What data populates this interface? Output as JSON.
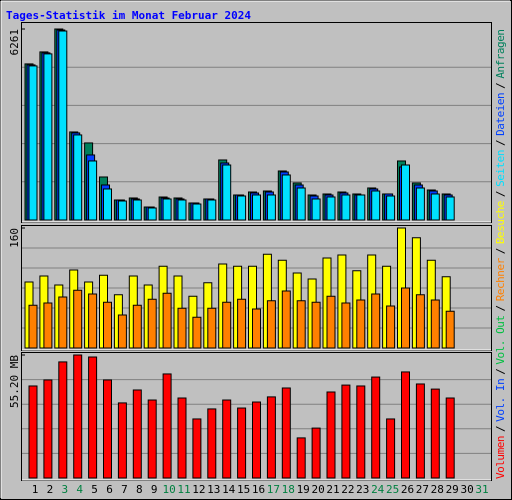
{
  "chart_data": {
    "type": "bar",
    "title": "Tages-Statistik im Monat Februar 2024",
    "categories": [
      "1",
      "2",
      "3",
      "4",
      "5",
      "6",
      "7",
      "8",
      "9",
      "10",
      "11",
      "12",
      "13",
      "14",
      "15",
      "16",
      "17",
      "18",
      "19",
      "20",
      "21",
      "22",
      "23",
      "24",
      "25",
      "26",
      "27",
      "28",
      "29",
      "30",
      "31"
    ],
    "category_colors": [
      "#000000",
      "#000000",
      "#008040",
      "#008040",
      "#000000",
      "#000000",
      "#000000",
      "#000000",
      "#000000",
      "#008040",
      "#008040",
      "#000000",
      "#000000",
      "#000000",
      "#000000",
      "#000000",
      "#008040",
      "#008040",
      "#000000",
      "#000000",
      "#000000",
      "#000000",
      "#000000",
      "#008040",
      "#008040",
      "#000000",
      "#000000",
      "#000000",
      "#000000",
      "#000000",
      "#008040"
    ],
    "legend_separator": "/",
    "grid": true,
    "panels": [
      {
        "ylim": [
          0,
          6261
        ],
        "yticks": [
          6261
        ],
        "series": [
          {
            "name": "Anfragen",
            "color": "#00805c",
            "values": [
              5117,
              5510,
              6261,
              2886,
              2526,
              1410,
              656,
              722,
              426,
              754,
              722,
              558,
              689,
              1968,
              820,
              918,
              951,
              1607,
              1214,
              820,
              853,
              918,
              853,
              1050,
              853,
              1935,
              1214,
              984,
              853,
              null,
              null
            ]
          },
          {
            "name": "Dateien",
            "color": "#0040ff",
            "values": [
              5084,
              5478,
              6228,
              2854,
              2132,
              1148,
              656,
              689,
              426,
              721,
              689,
              558,
              689,
              1869,
              820,
              885,
              918,
              1574,
              1148,
              787,
              820,
              885,
              820,
              1017,
              853,
              1738,
              1148,
              951,
              820,
              null,
              null
            ]
          },
          {
            "name": "Seiten",
            "color": "#00e0ff",
            "values": [
              5051,
              5445,
              6195,
              2788,
              1935,
              1017,
              623,
              656,
              394,
              689,
              656,
              524,
              656,
              1803,
              787,
              820,
              820,
              1476,
              1049,
              689,
              755,
              820,
              820,
              951,
              787,
              1803,
              1049,
              853,
              755,
              null,
              null
            ]
          }
        ]
      },
      {
        "ylim": [
          0,
          160
        ],
        "yticks": [
          160
        ],
        "series": [
          {
            "name": "Besuche",
            "color": "#ffff00",
            "values": [
              88,
              96,
              84,
              104,
              88,
              97,
              71,
              96,
              84,
              109,
              96,
              69,
              87,
              112,
              109,
              109,
              125,
              117,
              100,
              92,
              120,
              124,
              103,
              124,
              109,
              160,
              147,
              117,
              95,
              null,
              null
            ]
          },
          {
            "name": "Rechner",
            "color": "#ff8000",
            "values": [
              57,
              60,
              68,
              77,
              72,
              61,
              44,
              57,
              65,
              73,
              53,
              41,
              53,
              61,
              65,
              52,
              63,
              76,
              63,
              61,
              69,
              60,
              64,
              72,
              56,
              80,
              71,
              64,
              49,
              null,
              null
            ]
          }
        ]
      },
      {
        "ylim": [
          0,
          55.2
        ],
        "yticks": [
          {
            "value": 55.2,
            "label": "55.20 MB"
          }
        ],
        "series": [
          {
            "name": "Vol. Out",
            "color": "#00c040",
            "values": [
              null,
              null,
              null,
              null,
              null,
              null,
              null,
              null,
              null,
              null,
              null,
              null,
              null,
              null,
              null,
              null,
              null,
              null,
              null,
              null,
              null,
              null,
              null,
              null,
              null,
              null,
              null,
              null,
              null,
              null,
              null
            ]
          },
          {
            "name": "Vol. In",
            "color": "#0040ff",
            "values": [
              null,
              null,
              null,
              null,
              null,
              null,
              null,
              null,
              null,
              null,
              null,
              null,
              null,
              null,
              null,
              null,
              null,
              null,
              null,
              null,
              null,
              null,
              null,
              null,
              null,
              null,
              null,
              null,
              null,
              null,
              null
            ]
          },
          {
            "name": "Volumen",
            "color": "#ff0000",
            "values": [
              41.3,
              44.0,
              52.1,
              55.2,
              54.3,
              44.0,
              33.7,
              39.5,
              35.0,
              46.7,
              35.9,
              26.5,
              31.0,
              35.0,
              31.4,
              34.1,
              36.4,
              40.4,
              18.0,
              22.4,
              38.6,
              41.7,
              41.3,
              45.3,
              26.5,
              47.6,
              42.2,
              39.9,
              35.9,
              null,
              null
            ]
          }
        ]
      }
    ]
  }
}
